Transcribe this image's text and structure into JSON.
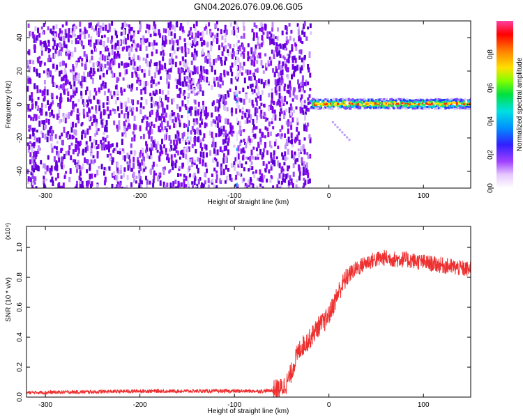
{
  "title": "GN04.2026.076.09.06.G05",
  "colors": {
    "snr_line": "#ee3030",
    "spec_point": "#7a00ee",
    "axis": "#000000"
  },
  "chart_data": [
    {
      "type": "heatmap",
      "xlabel": "Height of straight line (km)",
      "ylabel": "Frequency (Hz)",
      "xlim": [
        -320,
        150
      ],
      "ylim": [
        -50,
        50
      ],
      "x_ticks": [
        -300,
        -200,
        -100,
        0,
        100
      ],
      "y_ticks": [
        -40,
        -20,
        0,
        20,
        40
      ],
      "noise_region_x": [
        -320,
        -20
      ],
      "signal_band": {
        "x_range": [
          -20,
          150
        ],
        "center_freq": 1,
        "half_width": 3
      },
      "colorbar": {
        "label": "Normalized spectral amplitude",
        "range": [
          0,
          1
        ],
        "ticks": [
          0.0,
          0.2,
          0.4,
          0.6,
          0.8
        ]
      }
    },
    {
      "type": "line",
      "xlabel": "Height of straight line (km)",
      "ylabel": "SNR (10 * v/v)",
      "y_multiplier": "(x10⁴)",
      "xlim": [
        -320,
        150
      ],
      "ylim": [
        0,
        1.14
      ],
      "x_ticks": [
        -300,
        -200,
        -100,
        0,
        100
      ],
      "y_ticks": [
        0.0,
        0.2,
        0.4,
        0.6,
        0.8,
        1.0
      ],
      "series": [
        {
          "x": [
            -320,
            -250,
            -200,
            -150,
            -100,
            -70,
            -60,
            -50,
            -45,
            -40,
            -35,
            -30,
            -25,
            -20,
            -15,
            -10,
            -5,
            0,
            5,
            10,
            15,
            20,
            25,
            30,
            35,
            40,
            50,
            60,
            70,
            80,
            90,
            100,
            110,
            120,
            130,
            140,
            150
          ],
          "y": [
            0.03,
            0.035,
            0.04,
            0.04,
            0.04,
            0.04,
            0.045,
            0.06,
            0.09,
            0.16,
            0.26,
            0.33,
            0.36,
            0.39,
            0.44,
            0.48,
            0.5,
            0.55,
            0.62,
            0.7,
            0.76,
            0.81,
            0.84,
            0.86,
            0.88,
            0.9,
            0.92,
            0.93,
            0.92,
            0.92,
            0.91,
            0.9,
            0.89,
            0.88,
            0.87,
            0.86,
            0.85
          ]
        }
      ]
    }
  ]
}
